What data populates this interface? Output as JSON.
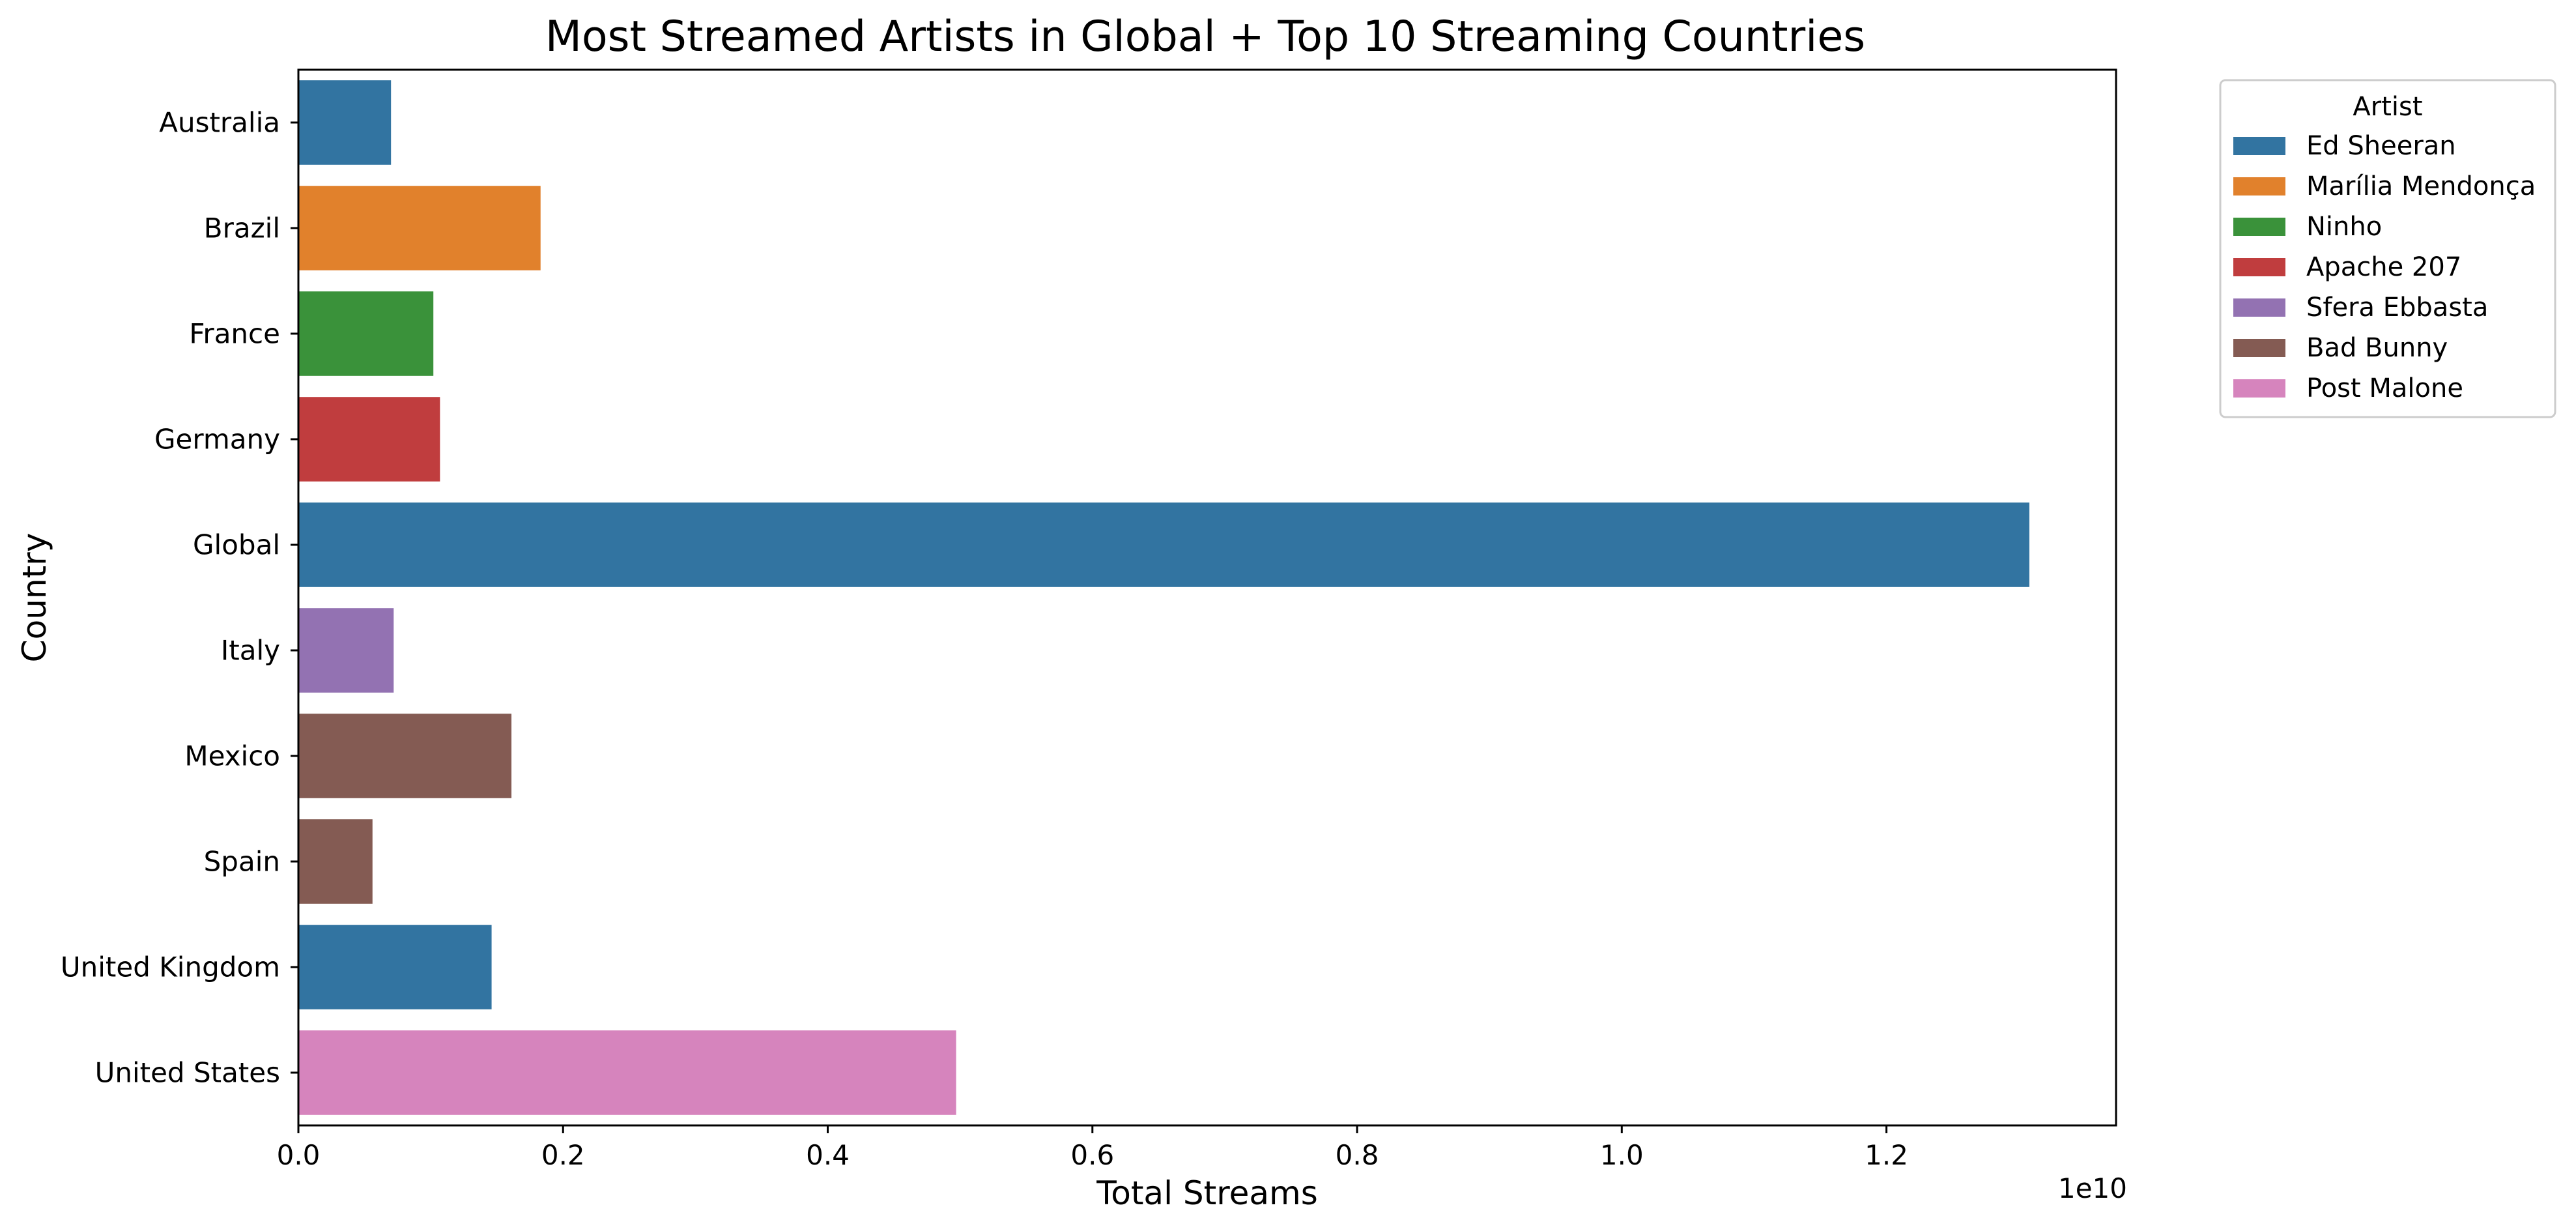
{
  "chart_data": {
    "type": "bar",
    "orientation": "horizontal",
    "title": "Most Streamed Artists in Global + Top 10 Streaming Countries",
    "xlabel": "Total Streams",
    "ylabel": "Country",
    "x_offset_label": "1e10",
    "xlim": [
      0,
      1.3735
    ],
    "xtick_labels": [
      "0.0",
      "0.2",
      "0.4",
      "0.6",
      "0.8",
      "1.0",
      "1.2"
    ],
    "xtick_values": [
      0,
      0.2,
      0.4,
      0.6,
      0.8,
      1.0,
      1.2
    ],
    "grid": false,
    "categories": [
      "Australia",
      "Brazil",
      "France",
      "Germany",
      "Global",
      "Italy",
      "Mexico",
      "Spain",
      "United Kingdom",
      "United States"
    ],
    "values": [
      0.07,
      0.183,
      0.102,
      0.107,
      1.308,
      0.072,
      0.161,
      0.056,
      0.146,
      0.497
    ],
    "artists": [
      "Ed Sheeran",
      "Marília Mendonça",
      "Ninho",
      "Apache 207",
      "Ed Sheeran",
      "Sfera Ebbasta",
      "Bad Bunny",
      "Bad Bunny",
      "Ed Sheeran",
      "Post Malone"
    ],
    "legend": {
      "title": "Artist",
      "placement": "outside upper right",
      "entries": [
        {
          "name": "Ed Sheeran",
          "color": "#3274a1"
        },
        {
          "name": "Marília Mendonça",
          "color": "#e1812c"
        },
        {
          "name": "Ninho",
          "color": "#3a923a"
        },
        {
          "name": "Apache 207",
          "color": "#c03d3e"
        },
        {
          "name": "Sfera Ebbasta",
          "color": "#9372b2"
        },
        {
          "name": "Bad Bunny",
          "color": "#845b53"
        },
        {
          "name": "Post Malone",
          "color": "#d684bd"
        }
      ]
    }
  }
}
